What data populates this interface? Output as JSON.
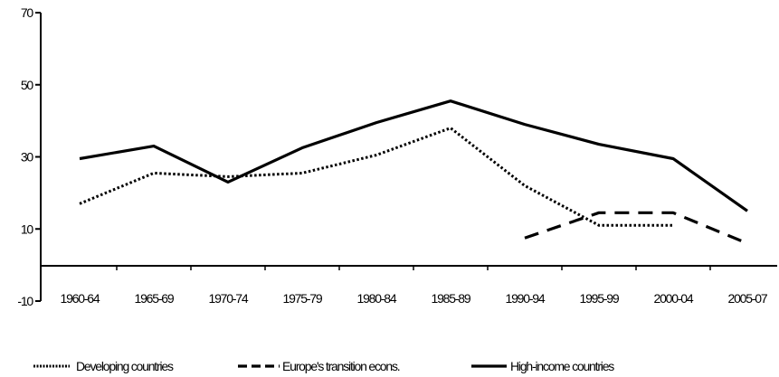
{
  "chart_data": {
    "type": "line",
    "title": "",
    "xlabel": "",
    "ylabel": "",
    "ylim": [
      -10,
      70
    ],
    "yticks": [
      -10,
      10,
      30,
      50,
      70
    ],
    "grid": false,
    "legend_position": "bottom",
    "categories": [
      "1960-64",
      "1965-69",
      "1970-74",
      "1975-79",
      "1980-84",
      "1985-89",
      "1990-94",
      "1995-99",
      "2000-04",
      "2005-07"
    ],
    "series": [
      {
        "name": "Developing countries",
        "style": "dotted",
        "color": "#000000",
        "values": [
          17,
          25.5,
          24.5,
          25.5,
          30.5,
          38,
          22,
          11,
          11,
          null
        ]
      },
      {
        "name": "Europe's transition econs.",
        "style": "dashed",
        "color": "#000000",
        "values": [
          null,
          null,
          null,
          null,
          null,
          null,
          7.5,
          14.5,
          14.5,
          6
        ]
      },
      {
        "name": "High-income countries",
        "style": "solid",
        "color": "#000000",
        "values": [
          29.5,
          33,
          23,
          32.5,
          39.5,
          45.5,
          39,
          33.5,
          29.5,
          15
        ]
      }
    ]
  }
}
